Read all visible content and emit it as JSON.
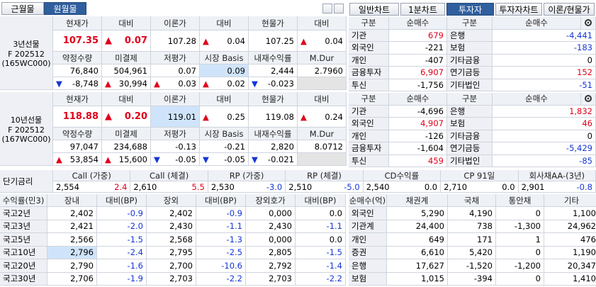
{
  "tabs": {
    "left": [
      "근월물",
      "원월물"
    ],
    "right": [
      "일반차트",
      "1분차트",
      "투자자",
      "투자자차트",
      "이론/현물가"
    ]
  },
  "futures": [
    {
      "name": [
        "3년선물",
        "F 202512",
        "(165WC000)"
      ],
      "header1": [
        "현재가",
        "대비",
        "이론가",
        "대비",
        "현물가",
        "대비"
      ],
      "row1": [
        "107.35",
        {
          "arrow": "▲",
          "text": "0.07"
        },
        "107.28",
        {
          "arrow": "▲",
          "text": "0.04"
        },
        "107.25",
        {
          "arrow": "▲",
          "text": "0.04"
        }
      ],
      "header2": [
        "약정수량",
        "미결제",
        "저평가",
        "시장 Basis",
        "내재수익률",
        "M.Dur"
      ],
      "row2": [
        "76,840",
        "504,961",
        "0.07",
        "0.09",
        "2,444",
        "2.7960"
      ],
      "row3": [
        {
          "arrow": "▼",
          "text": "-8,748"
        },
        {
          "arrow": "▲",
          "text": "30,994"
        },
        {
          "arrow": "▲",
          "text": "0.03"
        },
        {
          "arrow": "▲",
          "text": "0.02"
        },
        {
          "arrow": "▼",
          "text": "-0.023"
        },
        null
      ]
    },
    {
      "name": [
        "10년선물",
        "F 202512",
        "(167WC000)"
      ],
      "header1": [
        "현재가",
        "대비",
        "이론가",
        "대비",
        "현물가",
        "대비"
      ],
      "row1": [
        "118.88",
        {
          "arrow": "▲",
          "text": "0.20"
        },
        "119.01",
        {
          "arrow": "▲",
          "text": "0.25"
        },
        "119.08",
        {
          "arrow": "▲",
          "text": "0.24"
        }
      ],
      "header2": [
        "약정수량",
        "미결제",
        "저평가",
        "시장 Basis",
        "내재수익률",
        "M.Dur"
      ],
      "row2": [
        "97,047",
        "234,688",
        "-0.13",
        "-0.21",
        "2,820",
        "8.0712"
      ],
      "row3": [
        {
          "arrow": "▲",
          "text": "53,854"
        },
        {
          "arrow": "▲",
          "text": "15,600"
        },
        {
          "arrow": "▼",
          "text": "-0.05"
        },
        {
          "arrow": "▼",
          "text": "-0.05"
        },
        {
          "arrow": "▼",
          "text": "-0.021"
        },
        null
      ]
    }
  ],
  "investors": [
    {
      "header": [
        "구분",
        "순매수",
        "구분",
        "순매수"
      ],
      "rows": [
        [
          "기관",
          "679",
          "은행",
          "-4,441"
        ],
        [
          "외국인",
          "-221",
          "보험",
          "-183"
        ],
        [
          "개인",
          "-407",
          "기타금융",
          "0"
        ],
        [
          "금융투자",
          "6,907",
          "연기금등",
          "152"
        ],
        [
          "투신",
          "-1,756",
          "기타법인",
          "-51"
        ]
      ]
    },
    {
      "header": [
        "구분",
        "순매수",
        "구분",
        "순매수"
      ],
      "rows": [
        [
          "기관",
          "-4,696",
          "은행",
          "1,832"
        ],
        [
          "외국인",
          "4,907",
          "보험",
          "46"
        ],
        [
          "개인",
          "-126",
          "기타금융",
          "0"
        ],
        [
          "금융투자",
          "-1,604",
          "연기금등",
          "-5,429"
        ],
        [
          "투신",
          "459",
          "기타법인",
          "-85"
        ]
      ]
    }
  ],
  "short_rates": {
    "label": "단기금리",
    "columns": [
      "Call (가중)",
      "Call (체결)",
      "RP (가중)",
      "RP (체결)",
      "CD수익률",
      "CP 91일",
      "회사채AA-(3년)"
    ],
    "values": [
      {
        "rate": "2,554",
        "change": "2.4"
      },
      {
        "rate": "2,610",
        "change": "5.5"
      },
      {
        "rate": "2,530",
        "change": "-3.0"
      },
      {
        "rate": "2,510",
        "change": "-5.0"
      },
      {
        "rate": "2,540",
        "change": "0.0"
      },
      {
        "rate": "2,710",
        "change": "0.0"
      },
      {
        "rate": "2,901",
        "change": "-0.8"
      }
    ]
  },
  "yields": {
    "header": [
      "수익률(민3)",
      "장내",
      "대비(BP)",
      "장외",
      "대비(BP)",
      "장외호가",
      "대비(BP)"
    ],
    "rows": [
      [
        "국고2년",
        "2,402",
        "-0.9",
        "2,402",
        "-0.9",
        "0,000",
        "0.0"
      ],
      [
        "국고3년",
        "2,421",
        "-2.0",
        "2,430",
        "-1.1",
        "2,430",
        "-1.1"
      ],
      [
        "국고5년",
        "2,566",
        "-1.5",
        "2,568",
        "-1.3",
        "0,000",
        "0.0"
      ],
      [
        "국고10년",
        "2,796",
        "-2.4",
        "2,795",
        "-2.5",
        "2,805",
        "-1.5"
      ],
      [
        "국고20년",
        "2,790",
        "-1.6",
        "2,700",
        "-10.6",
        "2,792",
        "-1.4"
      ],
      [
        "국고30년",
        "2,706",
        "-1.9",
        "2,703",
        "-2.2",
        "2,703",
        "-2.2"
      ]
    ]
  },
  "net_buy": {
    "header": [
      "순매수(억)",
      "채권계",
      "국채",
      "통안채",
      "기타"
    ],
    "rows": [
      [
        "외국인",
        "5,290",
        "4,190",
        "0",
        "1,100"
      ],
      [
        "기관계",
        "24,400",
        "738",
        "-1,300",
        "24,962"
      ],
      [
        "개인",
        "649",
        "171",
        "1",
        "476"
      ],
      [
        "증권",
        "6,610",
        "5,420",
        "0",
        "1,190"
      ],
      [
        "은행",
        "17,627",
        "-1,520",
        "-1,200",
        "20,347"
      ],
      [
        "보험",
        "1,015",
        "-394",
        "0",
        "1,410"
      ]
    ]
  }
}
